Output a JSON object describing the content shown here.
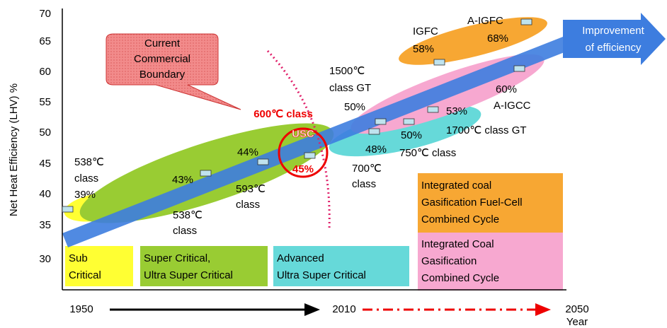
{
  "y_axis": {
    "label": "Net Heat Efficiency (LHV) %",
    "ticks": [
      "70",
      "65",
      "60",
      "55",
      "50",
      "45",
      "40",
      "35",
      "30"
    ]
  },
  "x_axis": {
    "start": "1950",
    "mid": "2010",
    "end": "2050",
    "label": "Year"
  },
  "callout": [
    "Current",
    "Commercial",
    "Boundary"
  ],
  "arrow_label": [
    "Improvement",
    "of efficiency"
  ],
  "usc": {
    "title": "600℃ class",
    "name": "USC",
    "value": "45%"
  },
  "annotations": [
    [
      "538℃",
      "class",
      "39%"
    ],
    [
      "43%"
    ],
    [
      "538℃",
      "class"
    ],
    [
      "44%"
    ],
    [
      "593℃",
      "class"
    ],
    [
      "1500℃",
      "class GT"
    ],
    [
      "50%"
    ],
    [
      "48%"
    ],
    [
      "700℃",
      "class"
    ],
    [
      "50%"
    ],
    [
      "750℃ class"
    ],
    [
      "53%"
    ],
    [
      "1700℃ class GT"
    ],
    [
      "60%",
      "A-IGCC"
    ],
    [
      "IGFC",
      "58%"
    ],
    [
      "A-IGFC",
      "68%"
    ]
  ],
  "legend": [
    [
      "Sub",
      "Critical"
    ],
    [
      "Super Critical,",
      "Ultra Super Critical"
    ],
    [
      "Advanced",
      "Ultra Super Critical"
    ],
    [
      "Integrated coal",
      "Gasification Fuel-Cell",
      "Combined Cycle"
    ],
    [
      "Integrated Coal",
      "Gasification",
      "Combined Cycle"
    ]
  ]
}
